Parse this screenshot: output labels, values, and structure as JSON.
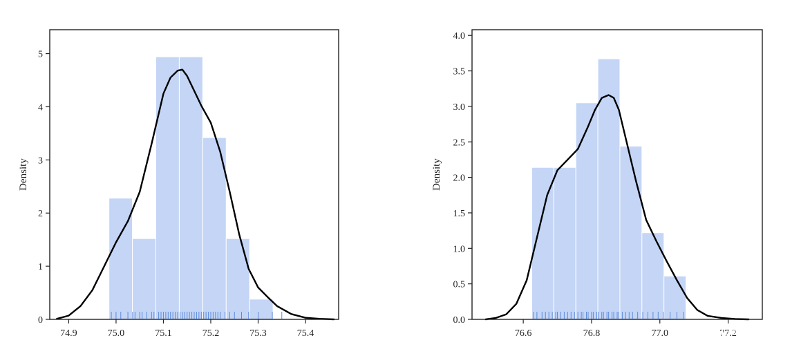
{
  "chart_data": [
    {
      "type": "histogram+kde+rug",
      "ylabel": "Density",
      "xlim": [
        74.86,
        75.47
      ],
      "ylim": [
        0,
        5.45
      ],
      "xticks": [
        74.9,
        75.0,
        75.1,
        75.2,
        75.3,
        75.4
      ],
      "xtick_labels": [
        "74.9",
        "75.0",
        "75.1",
        "75.2",
        "75.3",
        "75.4"
      ],
      "yticks": [
        0,
        1,
        2,
        3,
        4,
        5
      ],
      "ytick_labels": [
        "0",
        "1",
        "2",
        "3",
        "4",
        "5"
      ],
      "bins": [
        {
          "x0": 74.985,
          "x1": 75.0345,
          "height": 2.28
        },
        {
          "x0": 75.0345,
          "x1": 75.084,
          "height": 1.52
        },
        {
          "x0": 75.084,
          "x1": 75.1335,
          "height": 4.94
        },
        {
          "x0": 75.1335,
          "x1": 75.183,
          "height": 4.94
        },
        {
          "x0": 75.183,
          "x1": 75.2325,
          "height": 3.42
        },
        {
          "x0": 75.2325,
          "x1": 75.282,
          "height": 1.52
        },
        {
          "x0": 75.282,
          "x1": 75.3315,
          "height": 0.38
        }
      ],
      "kde": {
        "x": [
          74.875,
          74.9,
          74.925,
          74.95,
          74.975,
          75.0,
          75.025,
          75.05,
          75.075,
          75.1,
          75.115,
          75.13,
          75.14,
          75.15,
          75.165,
          75.18,
          75.2,
          75.22,
          75.24,
          75.26,
          75.28,
          75.3,
          75.32,
          75.34,
          75.37,
          75.4,
          75.43,
          75.46
        ],
        "y": [
          0.01,
          0.07,
          0.25,
          0.55,
          1.0,
          1.45,
          1.85,
          2.4,
          3.3,
          4.25,
          4.55,
          4.68,
          4.7,
          4.58,
          4.3,
          4.02,
          3.7,
          3.15,
          2.4,
          1.6,
          0.95,
          0.6,
          0.42,
          0.25,
          0.1,
          0.03,
          0.01,
          0.0
        ]
      },
      "rug": [
        74.99,
        75.0,
        75.01,
        75.025,
        75.035,
        75.04,
        75.05,
        75.055,
        75.065,
        75.075,
        75.08,
        75.09,
        75.095,
        75.1,
        75.105,
        75.11,
        75.115,
        75.12,
        75.125,
        75.13,
        75.135,
        75.14,
        75.145,
        75.15,
        75.155,
        75.16,
        75.165,
        75.17,
        75.175,
        75.18,
        75.185,
        75.19,
        75.195,
        75.2,
        75.205,
        75.21,
        75.215,
        75.22,
        75.23,
        75.24,
        75.25,
        75.265,
        75.28,
        75.3,
        75.33,
        75.35
      ]
    },
    {
      "type": "histogram+kde+rug",
      "ylabel": "Density",
      "xlim": [
        76.45,
        77.3
      ],
      "ylim": [
        0,
        4.08
      ],
      "xticks": [
        76.6,
        76.8,
        77.0,
        77.2
      ],
      "xtick_labels": [
        "76.6",
        "76.8",
        "77.0",
        "77.2"
      ],
      "yticks": [
        0.0,
        0.5,
        1.0,
        1.5,
        2.0,
        2.5,
        3.0,
        3.5,
        4.0
      ],
      "ytick_labels": [
        "0.0",
        "0.5",
        "1.0",
        "1.5",
        "2.0",
        "2.5",
        "3.0",
        "3.5",
        "4.0"
      ],
      "bins": [
        {
          "x0": 76.625,
          "x1": 76.6895,
          "height": 2.14
        },
        {
          "x0": 76.6895,
          "x1": 76.754,
          "height": 2.14
        },
        {
          "x0": 76.754,
          "x1": 76.8185,
          "height": 3.05
        },
        {
          "x0": 76.8185,
          "x1": 76.883,
          "height": 3.67
        },
        {
          "x0": 76.883,
          "x1": 76.9475,
          "height": 2.44
        },
        {
          "x0": 76.9475,
          "x1": 77.012,
          "height": 1.22
        },
        {
          "x0": 77.012,
          "x1": 77.0765,
          "height": 0.61
        }
      ],
      "kde": {
        "x": [
          76.49,
          76.52,
          76.55,
          76.58,
          76.61,
          76.64,
          76.67,
          76.7,
          76.73,
          76.76,
          76.79,
          76.81,
          76.83,
          76.85,
          76.865,
          76.88,
          76.9,
          76.93,
          76.96,
          76.99,
          77.02,
          77.05,
          77.08,
          77.11,
          77.14,
          77.18,
          77.22,
          77.26
        ],
        "y": [
          0.0,
          0.02,
          0.07,
          0.22,
          0.55,
          1.15,
          1.75,
          2.1,
          2.25,
          2.4,
          2.72,
          2.95,
          3.12,
          3.16,
          3.12,
          2.95,
          2.55,
          1.95,
          1.4,
          1.1,
          0.82,
          0.55,
          0.3,
          0.13,
          0.05,
          0.02,
          0.005,
          0.0
        ]
      },
      "rug": [
        76.63,
        76.64,
        76.655,
        76.665,
        76.675,
        76.685,
        76.695,
        76.7,
        76.71,
        76.72,
        76.73,
        76.74,
        76.75,
        76.76,
        76.77,
        76.775,
        76.785,
        76.79,
        76.8,
        76.805,
        76.815,
        76.82,
        76.83,
        76.835,
        76.845,
        76.85,
        76.86,
        76.865,
        76.875,
        76.88,
        76.89,
        76.9,
        76.91,
        76.92,
        76.935,
        76.95,
        76.965,
        76.98,
        76.995,
        77.01,
        77.03,
        77.05,
        77.07
      ]
    }
  ],
  "style": {
    "bar_fill": "#c4d5f6",
    "bar_edge": "#ffffff",
    "kde_color": "#000000",
    "rug_color": "#5b8bdc",
    "axis_color": "#222222"
  },
  "watermark": {
    "text": "@稀土掘金技术社区"
  }
}
